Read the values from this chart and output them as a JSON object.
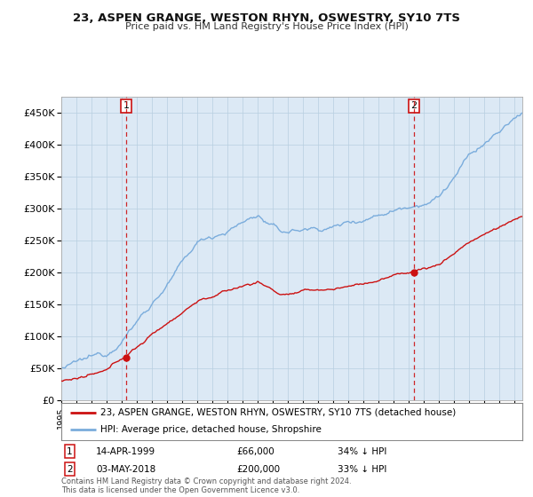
{
  "title": "23, ASPEN GRANGE, WESTON RHYN, OSWESTRY, SY10 7TS",
  "subtitle": "Price paid vs. HM Land Registry's House Price Index (HPI)",
  "ylabel_ticks": [
    "£0",
    "£50K",
    "£100K",
    "£150K",
    "£200K",
    "£250K",
    "£300K",
    "£350K",
    "£400K",
    "£450K"
  ],
  "ytick_values": [
    0,
    50000,
    100000,
    150000,
    200000,
    250000,
    300000,
    350000,
    400000,
    450000
  ],
  "ylim": [
    0,
    475000
  ],
  "hpi_color": "#7aacdc",
  "price_color": "#cc1111",
  "marker_color": "#cc1111",
  "vline_color": "#cc1111",
  "annotation_box_edgecolor": "#cc1111",
  "legend_border_color": "#888888",
  "plot_bg_color": "#dce9f5",
  "background_color": "#ffffff",
  "grid_color": "#b8cfe0",
  "footnote": "Contains HM Land Registry data © Crown copyright and database right 2024.\nThis data is licensed under the Open Government Licence v3.0.",
  "legend_line1": "23, ASPEN GRANGE, WESTON RHYN, OSWESTRY, SY10 7TS (detached house)",
  "legend_line2": "HPI: Average price, detached house, Shropshire",
  "sale1_label": "1",
  "sale1_date": "14-APR-1999",
  "sale1_price": "£66,000",
  "sale1_hpi": "34% ↓ HPI",
  "sale1_year": 1999.28,
  "sale1_value": 66000,
  "sale2_label": "2",
  "sale2_date": "03-MAY-2018",
  "sale2_price": "£200,000",
  "sale2_hpi": "33% ↓ HPI",
  "sale2_year": 2018.33,
  "sale2_value": 200000,
  "grid_color_minor": "#cccccc"
}
